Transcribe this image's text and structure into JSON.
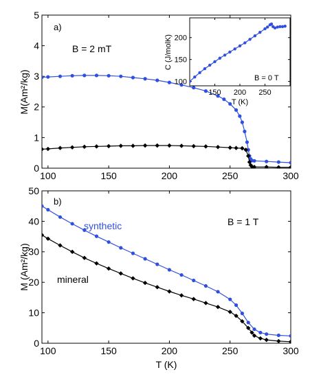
{
  "chart_data": [
    {
      "type": "line",
      "panel_label": "a)",
      "annotation": "B = 2 mT",
      "ylabel": "M(Am²/kg)",
      "xlim": [
        95,
        300
      ],
      "ylim": [
        0,
        5
      ],
      "xticks": [
        "100",
        "150",
        "200",
        "250",
        "300"
      ],
      "yticks": [
        "0",
        "1",
        "2",
        "3",
        "4",
        "5"
      ],
      "series": [
        {
          "color": "#2f4fe0",
          "marker": "circle",
          "x": [
            95,
            100,
            110,
            120,
            130,
            140,
            150,
            160,
            170,
            180,
            190,
            200,
            210,
            220,
            230,
            240,
            245,
            250,
            255,
            258,
            260,
            262,
            264,
            265,
            266,
            267,
            268,
            270,
            280,
            290,
            300
          ],
          "y": [
            2.97,
            2.98,
            3.0,
            3.02,
            3.03,
            3.03,
            3.02,
            3.0,
            2.96,
            2.92,
            2.87,
            2.8,
            2.72,
            2.63,
            2.52,
            2.36,
            2.25,
            2.1,
            1.9,
            1.7,
            1.5,
            1.2,
            0.85,
            0.6,
            0.4,
            0.3,
            0.25,
            0.24,
            0.22,
            0.2,
            0.18
          ]
        },
        {
          "color": "#000000",
          "marker": "diamond",
          "x": [
            95,
            100,
            110,
            120,
            130,
            140,
            150,
            160,
            170,
            180,
            190,
            200,
            210,
            220,
            230,
            240,
            250,
            255,
            260,
            263,
            265,
            266,
            267,
            268,
            270,
            280,
            290,
            300
          ],
          "y": [
            0.62,
            0.63,
            0.66,
            0.68,
            0.7,
            0.71,
            0.72,
            0.73,
            0.73,
            0.74,
            0.74,
            0.74,
            0.73,
            0.72,
            0.71,
            0.69,
            0.67,
            0.66,
            0.65,
            0.6,
            0.4,
            0.2,
            0.1,
            0.05,
            0.04,
            0.04,
            0.03,
            0.03
          ]
        }
      ],
      "inset": {
        "type": "line",
        "ylabel": "C (J/molK)",
        "xlabel": "T (K)",
        "annotation": "B = 0 T",
        "xlim": [
          100,
          300
        ],
        "ylim": [
          90,
          245
        ],
        "xticks": [
          "150",
          "200",
          "250"
        ],
        "yticks": [
          "100",
          "150",
          "200"
        ],
        "series": [
          {
            "color": "#2f4fe0",
            "marker": "circle",
            "x": [
              100,
              110,
              120,
              130,
              140,
              150,
              160,
              170,
              180,
              190,
              200,
              210,
              220,
              230,
              240,
              250,
              255,
              260,
              263,
              266,
              270,
              275,
              280,
              285,
              290
            ],
            "y": [
              100,
              110,
              120,
              129,
              137,
              145,
              153,
              160,
              167,
              174,
              181,
              188,
              196,
              204,
              212,
              220,
              224,
              229,
              231,
              225,
              222,
              224,
              225,
              225,
              226
            ]
          }
        ]
      }
    },
    {
      "type": "line",
      "panel_label": "b)",
      "annotation": "B = 1 T",
      "xlabel": "T (K)",
      "ylabel": "M (Am²/kg)",
      "xlim": [
        95,
        300
      ],
      "ylim": [
        0,
        50
      ],
      "xticks": [
        "100",
        "150",
        "200",
        "250",
        "300"
      ],
      "yticks": [
        "0",
        "10",
        "20",
        "30",
        "40",
        "50"
      ],
      "series": [
        {
          "name": "synthetic",
          "color": "#2f4fe0",
          "marker": "circle",
          "x": [
            95,
            100,
            110,
            120,
            130,
            140,
            150,
            160,
            170,
            180,
            190,
            200,
            210,
            220,
            230,
            240,
            250,
            255,
            260,
            265,
            270,
            275,
            280,
            290,
            300
          ],
          "y": [
            45,
            43.8,
            41.4,
            39.2,
            37.1,
            35.1,
            33.2,
            31.3,
            29.5,
            27.7,
            25.9,
            24.1,
            22.4,
            20.6,
            18.8,
            16.9,
            14.4,
            12.5,
            9.8,
            6.8,
            4.6,
            3.5,
            3.0,
            2.6,
            2.4
          ]
        },
        {
          "name": "mineral",
          "color": "#000000",
          "marker": "diamond",
          "x": [
            95,
            100,
            110,
            120,
            130,
            140,
            150,
            160,
            170,
            180,
            190,
            200,
            210,
            220,
            230,
            240,
            250,
            255,
            260,
            265,
            268,
            270,
            275,
            280,
            290,
            300
          ],
          "y": [
            35.5,
            34.3,
            32.1,
            30.0,
            28.0,
            26.2,
            24.5,
            22.9,
            21.3,
            19.8,
            18.4,
            17.0,
            15.7,
            14.5,
            13.2,
            11.9,
            10.3,
            9.0,
            7.2,
            5.0,
            3.5,
            2.5,
            1.6,
            1.1,
            0.7,
            0.5
          ]
        }
      ]
    }
  ]
}
